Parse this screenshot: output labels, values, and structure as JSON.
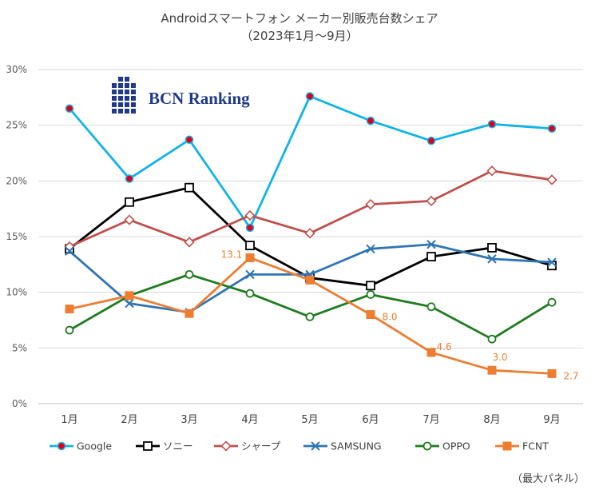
{
  "chart_data": {
    "type": "line",
    "title": "Androidスマートフォン メーカー別販売台数シェア",
    "subtitle": "（2023年1月～9月）",
    "xlabel": "",
    "ylabel": "",
    "categories": [
      "1月",
      "2月",
      "3月",
      "4月",
      "5月",
      "6月",
      "7月",
      "8月",
      "9月"
    ],
    "ylim": [
      0,
      30
    ],
    "ytick_labels": [
      "0%",
      "5%",
      "10%",
      "15%",
      "20%",
      "25%",
      "30%"
    ],
    "ytick_values": [
      0,
      5,
      10,
      15,
      20,
      25,
      30
    ],
    "grid": true,
    "legend": "bottom",
    "series": [
      {
        "name": "Google",
        "color": "#0fb4e6",
        "marker": "dot-red",
        "values": [
          26.5,
          20.2,
          23.7,
          15.8,
          27.6,
          25.4,
          23.6,
          25.1,
          24.7
        ]
      },
      {
        "name": "ソニー",
        "color": "#000000",
        "marker": "square-open",
        "values": [
          13.9,
          18.1,
          19.4,
          14.2,
          11.3,
          10.6,
          13.2,
          14.0,
          12.4
        ]
      },
      {
        "name": "シャープ",
        "color": "#c0504d",
        "marker": "diamond-open",
        "values": [
          14.1,
          16.5,
          14.5,
          16.9,
          15.3,
          17.9,
          18.2,
          20.9,
          20.1
        ]
      },
      {
        "name": "SAMSUNG",
        "color": "#2e75b6",
        "marker": "x",
        "values": [
          13.7,
          9.0,
          8.2,
          11.6,
          11.6,
          13.9,
          14.3,
          13.0,
          12.7
        ]
      },
      {
        "name": "OPPO",
        "color": "#1e7b1e",
        "marker": "circle-open",
        "values": [
          6.6,
          9.7,
          11.6,
          9.9,
          7.8,
          9.8,
          8.7,
          5.8,
          9.1
        ]
      },
      {
        "name": "FCNT",
        "color": "#ed7d31",
        "marker": "square-filled",
        "values": [
          8.5,
          9.7,
          8.1,
          13.1,
          11.1,
          8.0,
          4.6,
          3.0,
          2.7
        ],
        "data_labels": [
          null,
          null,
          null,
          "13.1",
          null,
          "8.0",
          "4.6",
          "3.0",
          "2.7"
        ]
      }
    ]
  },
  "logo": {
    "text": "BCN Ranking",
    "color": "#1f3a8a"
  },
  "footnote": "（最大パネル）"
}
